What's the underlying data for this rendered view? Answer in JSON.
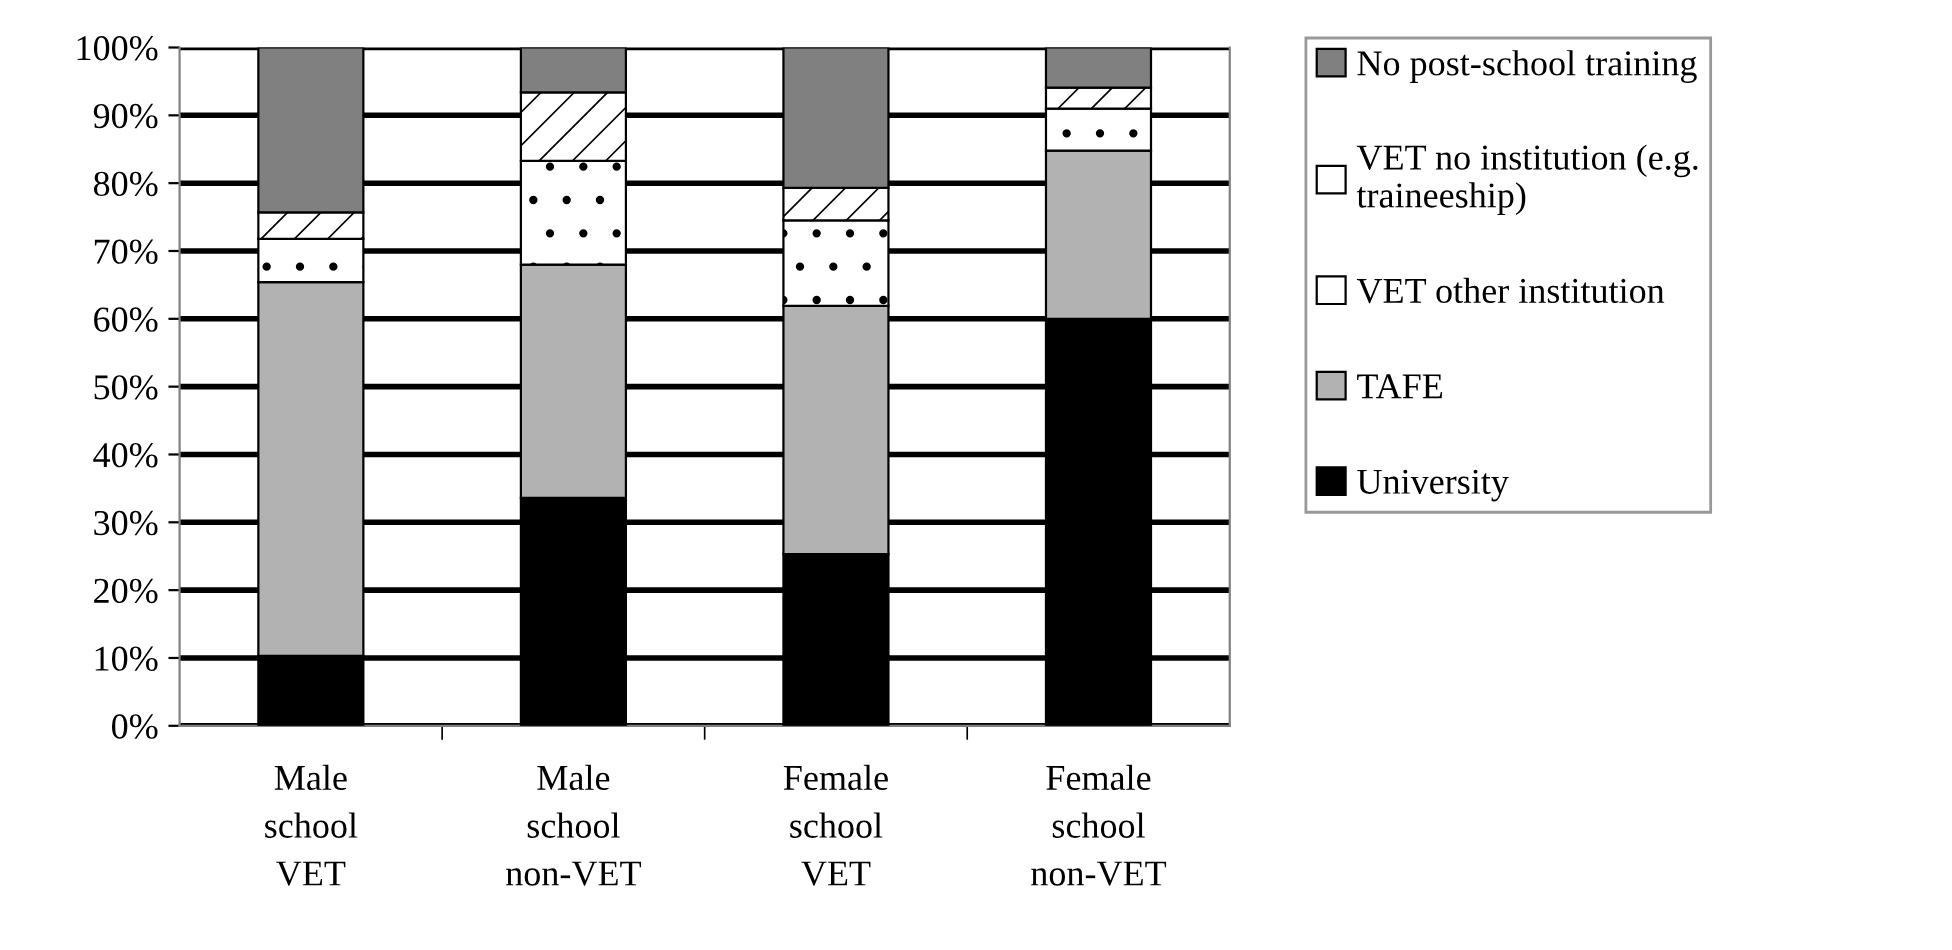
{
  "chart_data": {
    "type": "bar",
    "stacked": true,
    "categories": [
      "Male\nschool\nVET",
      "Male\nschool\nnon-VET",
      "Female\nschool\nVET",
      "Female\nschool\nnon-VET"
    ],
    "series": [
      {
        "name": "University",
        "color": "#000000",
        "values": [
          10.3,
          33.6,
          25.3,
          60.0
        ]
      },
      {
        "name": "TAFE",
        "color": "#b2b2b2",
        "values": [
          55.1,
          34.4,
          36.6,
          24.8
        ]
      },
      {
        "name": "VET other institution",
        "color": "#ffffff",
        "values": [
          6.4,
          15.3,
          12.6,
          6.2
        ]
      },
      {
        "name": "VET no institution (e.g.\ntraineeship)",
        "color": "#ffffff",
        "values": [
          3.9,
          10.1,
          4.8,
          3.1
        ]
      },
      {
        "name": "No post-school training",
        "color": "#808080",
        "values": [
          24.3,
          6.6,
          20.7,
          5.9
        ]
      }
    ],
    "ylim": [
      0,
      100
    ],
    "yticks": [
      {
        "value": 0,
        "label": "0%"
      },
      {
        "value": 10,
        "label": "10%"
      },
      {
        "value": 20,
        "label": "20%"
      },
      {
        "value": 30,
        "label": "30%"
      },
      {
        "value": 40,
        "label": "40%"
      },
      {
        "value": 50,
        "label": "50%"
      },
      {
        "value": 60,
        "label": "60%"
      },
      {
        "value": 70,
        "label": "70%"
      },
      {
        "value": 80,
        "label": "80%"
      },
      {
        "value": 90,
        "label": "90%"
      },
      {
        "value": 100,
        "label": "100%"
      }
    ],
    "grid": "y",
    "legend": "right"
  }
}
